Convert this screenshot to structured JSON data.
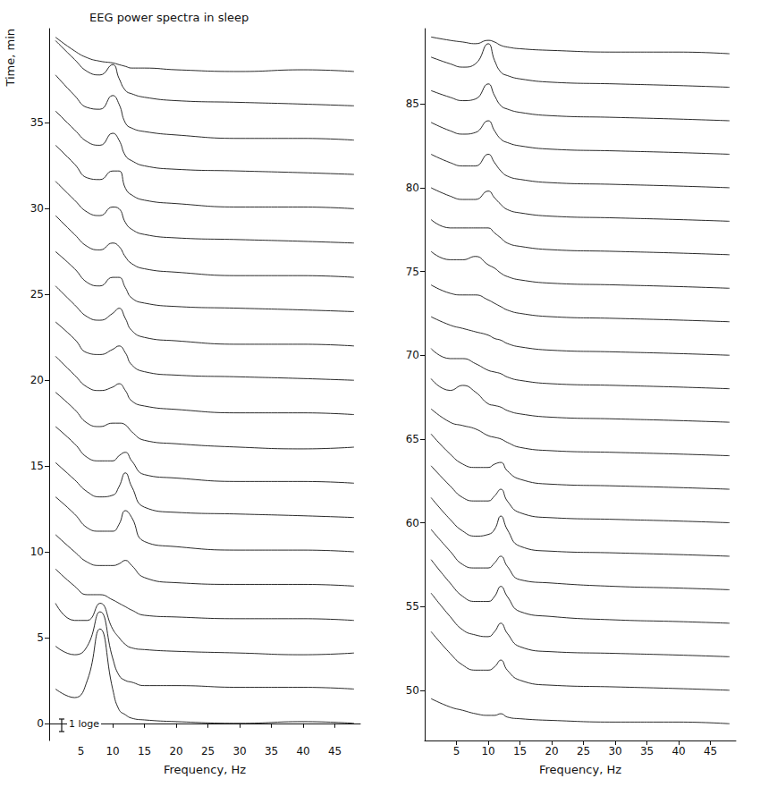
{
  "chart_data": [
    {
      "type": "line",
      "title": "EEG power spectra in sleep",
      "xlabel": "Frequency, Hz",
      "ylabel": "Time, min",
      "annotation": "1 loge",
      "color": "#111111",
      "line_style": "solid",
      "grid": false,
      "x": [
        1,
        4,
        6,
        8,
        10,
        11,
        12,
        13,
        15,
        20,
        30,
        40,
        48
      ],
      "xlim": [
        0,
        49
      ],
      "xticks": [
        5,
        10,
        15,
        20,
        25,
        30,
        35,
        40,
        45
      ],
      "ylim": [
        -1,
        40.5
      ],
      "yticks": [
        0,
        5,
        10,
        15,
        20,
        25,
        30,
        35
      ],
      "series": [
        {
          "values": [
            2,
            1.5,
            2.5,
            5.5,
            2,
            0.8,
            0.5,
            0.3,
            0.2,
            0.1,
            0,
            0.1,
            0
          ]
        },
        {
          "values": [
            4.5,
            4,
            4.5,
            6.5,
            3.8,
            2.8,
            2.5,
            2.4,
            2.2,
            2.2,
            2.1,
            2.1,
            2
          ]
        },
        {
          "values": [
            7,
            6,
            6,
            7,
            5.5,
            5,
            4.6,
            4.4,
            4.3,
            4.2,
            4.1,
            4,
            4.1
          ]
        },
        {
          "values": [
            9,
            8,
            7.5,
            7.5,
            7.2,
            7,
            6.8,
            6.6,
            6.3,
            6.2,
            6.1,
            6.1,
            6
          ]
        },
        {
          "values": [
            11,
            10,
            9.4,
            9.2,
            9.2,
            9.3,
            9.5,
            9.2,
            8.5,
            8.2,
            8.1,
            8.1,
            8
          ]
        },
        {
          "values": [
            13.2,
            12.2,
            11.4,
            11.2,
            11.2,
            11.6,
            12.4,
            12,
            10.6,
            10.3,
            10.1,
            10.1,
            10
          ]
        },
        {
          "values": [
            15.2,
            14.2,
            13.5,
            13.2,
            13.3,
            13.8,
            14.6,
            13.8,
            12.6,
            12.3,
            12.2,
            12.1,
            12
          ]
        },
        {
          "values": [
            17.3,
            16.3,
            15.5,
            15.3,
            15.3,
            15.6,
            15.8,
            15.3,
            14.5,
            14.3,
            14.1,
            14.1,
            14
          ]
        },
        {
          "values": [
            19.3,
            18.3,
            17.5,
            17.3,
            17.5,
            17.5,
            17.4,
            17,
            16.5,
            16.3,
            16.1,
            16,
            16.1
          ]
        },
        {
          "values": [
            21.4,
            20.3,
            19.6,
            19.4,
            19.6,
            19.8,
            19.4,
            18.8,
            18.5,
            18.3,
            18.1,
            18.1,
            18
          ]
        },
        {
          "values": [
            23.4,
            22.4,
            21.6,
            21.5,
            21.8,
            22,
            21.6,
            20.9,
            20.5,
            20.3,
            20.2,
            20.1,
            20
          ]
        },
        {
          "values": [
            25.5,
            24.4,
            23.7,
            23.5,
            23.9,
            24.2,
            23.6,
            22.9,
            22.5,
            22.3,
            22.1,
            22.1,
            22
          ]
        },
        {
          "values": [
            27.5,
            26.5,
            25.7,
            25.5,
            26,
            26,
            25.4,
            24.8,
            24.5,
            24.3,
            24.2,
            24.1,
            24
          ]
        },
        {
          "values": [
            29.6,
            28.5,
            27.8,
            27.6,
            28,
            27.8,
            27.2,
            26.8,
            26.5,
            26.3,
            26.1,
            26.1,
            26
          ]
        },
        {
          "values": [
            31.6,
            30.5,
            29.8,
            29.6,
            30.1,
            30,
            29.2,
            28.8,
            28.5,
            28.3,
            28.2,
            28.1,
            28
          ]
        },
        {
          "values": [
            33.7,
            32.6,
            31.8,
            31.7,
            32.2,
            32.2,
            31.2,
            30.8,
            30.5,
            30.3,
            30.1,
            30.1,
            30
          ]
        },
        {
          "values": [
            35.7,
            34.6,
            33.9,
            33.7,
            34.4,
            34,
            33.1,
            32.8,
            32.5,
            32.3,
            32.2,
            32.1,
            32
          ]
        },
        {
          "values": [
            37.8,
            36.6,
            35.9,
            35.8,
            36.6,
            36.1,
            35,
            34.7,
            34.5,
            34.3,
            34.1,
            34.1,
            34
          ]
        },
        {
          "values": [
            39.8,
            38.7,
            38,
            37.8,
            38.4,
            37.6,
            36.9,
            36.7,
            36.5,
            36.3,
            36.2,
            36.1,
            36
          ]
        },
        {
          "values": [
            40,
            39.2,
            38.8,
            38.6,
            38.5,
            38.4,
            38.3,
            38.2,
            38.2,
            38.1,
            38,
            38.1,
            38
          ]
        }
      ]
    },
    {
      "type": "line",
      "xlabel": "Frequency, Hz",
      "color": "#111111",
      "line_style": "solid",
      "grid": false,
      "x": [
        1,
        4,
        6,
        8,
        10,
        11,
        12,
        13,
        15,
        20,
        30,
        40,
        48
      ],
      "xlim": [
        0,
        49
      ],
      "xticks": [
        5,
        10,
        15,
        20,
        25,
        30,
        35,
        40,
        45
      ],
      "ylim": [
        47,
        89.5
      ],
      "yticks": [
        50,
        55,
        60,
        65,
        70,
        75,
        80,
        85
      ],
      "series": [
        {
          "values": [
            49.5,
            49,
            48.8,
            48.6,
            48.5,
            48.5,
            48.6,
            48.4,
            48.3,
            48.2,
            48.1,
            48.1,
            48
          ]
        },
        {
          "values": [
            53.5,
            52.2,
            51.5,
            51.2,
            51.2,
            51.4,
            51.8,
            51.2,
            50.6,
            50.3,
            50.2,
            50.1,
            50
          ]
        },
        {
          "values": [
            55.8,
            54.4,
            53.6,
            53.3,
            53.2,
            53.5,
            54,
            53.4,
            52.6,
            52.3,
            52.2,
            52.1,
            52
          ]
        },
        {
          "values": [
            57.8,
            56.4,
            55.6,
            55.3,
            55.3,
            55.6,
            56.2,
            55.6,
            54.7,
            54.4,
            54.2,
            54.1,
            54
          ]
        },
        {
          "values": [
            59.6,
            58.3,
            57.5,
            57.3,
            57.3,
            57.6,
            58,
            57.4,
            56.6,
            56.4,
            56.2,
            56.1,
            56
          ]
        },
        {
          "values": [
            61.5,
            60.2,
            59.5,
            59.2,
            59.3,
            59.6,
            60.4,
            59.6,
            58.6,
            58.3,
            58.2,
            58.1,
            58
          ]
        },
        {
          "values": [
            63.4,
            62.2,
            61.5,
            61.3,
            61.3,
            61.6,
            62,
            61.3,
            60.6,
            60.3,
            60.2,
            60.1,
            60
          ]
        },
        {
          "values": [
            65.3,
            64.1,
            63.5,
            63.3,
            63.3,
            63.5,
            63.6,
            63.1,
            62.6,
            62.3,
            62.2,
            62.1,
            62
          ]
        },
        {
          "values": [
            66.8,
            66,
            65.8,
            65.6,
            65.2,
            65.1,
            65,
            64.8,
            64.5,
            64.3,
            64.2,
            64.1,
            64
          ]
        },
        {
          "values": [
            68.6,
            67.9,
            68.2,
            67.8,
            67.1,
            67,
            66.9,
            66.7,
            66.5,
            66.3,
            66.2,
            66.1,
            66
          ]
        },
        {
          "values": [
            70.4,
            69.8,
            69.8,
            69.5,
            69.1,
            69,
            68.9,
            68.7,
            68.5,
            68.3,
            68.2,
            68.1,
            68
          ]
        },
        {
          "values": [
            72.3,
            71.8,
            71.6,
            71.4,
            71.2,
            71,
            70.9,
            70.7,
            70.5,
            70.3,
            70.2,
            70.1,
            70
          ]
        },
        {
          "values": [
            74.2,
            73.7,
            73.6,
            73.6,
            73.3,
            73.1,
            72.9,
            72.7,
            72.5,
            72.3,
            72.2,
            72.1,
            72
          ]
        },
        {
          "values": [
            76.2,
            75.7,
            75.7,
            75.9,
            75.4,
            75.2,
            74.9,
            74.7,
            74.5,
            74.3,
            74.2,
            74.1,
            74
          ]
        },
        {
          "values": [
            78.1,
            77.6,
            77.6,
            77.6,
            77.6,
            77.3,
            77,
            76.7,
            76.5,
            76.3,
            76.2,
            76.1,
            76
          ]
        },
        {
          "values": [
            80,
            79.5,
            79.3,
            79.3,
            79.8,
            79.4,
            79,
            78.7,
            78.5,
            78.3,
            78.2,
            78.1,
            78
          ]
        },
        {
          "values": [
            82,
            81.5,
            81.3,
            81.3,
            82,
            81.5,
            81,
            80.7,
            80.5,
            80.3,
            80.2,
            80.1,
            80
          ]
        },
        {
          "values": [
            83.9,
            83.4,
            83.2,
            83.3,
            84,
            83.4,
            82.9,
            82.7,
            82.5,
            82.3,
            82.2,
            82.1,
            82
          ]
        },
        {
          "values": [
            85.8,
            85.4,
            85.2,
            85.3,
            86.2,
            85.5,
            84.9,
            84.7,
            84.5,
            84.3,
            84.2,
            84.1,
            84
          ]
        },
        {
          "values": [
            87.8,
            87.4,
            87.2,
            87.4,
            88.6,
            87.6,
            86.9,
            86.7,
            86.5,
            86.3,
            86.2,
            86.1,
            86
          ]
        },
        {
          "values": [
            89,
            88.8,
            88.7,
            88.6,
            88.8,
            88.7,
            88.5,
            88.4,
            88.3,
            88.2,
            88.1,
            88.1,
            88
          ]
        }
      ]
    }
  ]
}
